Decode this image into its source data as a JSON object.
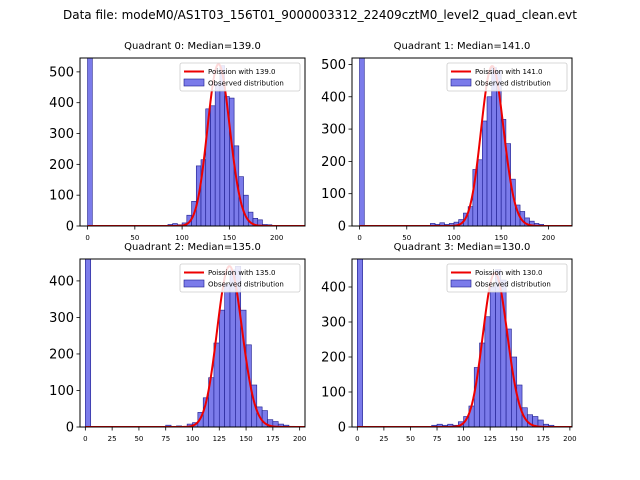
{
  "page": {
    "suptitle": "Data file: modeM0/AS1T03_156T01_9000003312_22409cztM0_level2_quad_clean.evt"
  },
  "colors": {
    "bar_fill": "#7b7bea",
    "bar_edge": "#1a1a8c",
    "fit_line": "#ee0000",
    "axis": "#000000"
  },
  "chart_data": [
    {
      "type": "bar",
      "title": "Quadrant 0: Median=139.0",
      "xlim": [
        -8,
        230
      ],
      "ylim": [
        0,
        545
      ],
      "xticks": [
        0,
        50,
        100,
        150,
        200
      ],
      "yticks": [
        0,
        100,
        200,
        300,
        400,
        500
      ],
      "bin_width": 5,
      "bars": [
        [
          0,
          545
        ],
        [
          85,
          5
        ],
        [
          90,
          8
        ],
        [
          95,
          4
        ],
        [
          100,
          10
        ],
        [
          105,
          35
        ],
        [
          110,
          80
        ],
        [
          115,
          195
        ],
        [
          120,
          215
        ],
        [
          125,
          380
        ],
        [
          130,
          390
        ],
        [
          135,
          460
        ],
        [
          140,
          520
        ],
        [
          145,
          420
        ],
        [
          150,
          415
        ],
        [
          155,
          260
        ],
        [
          160,
          160
        ],
        [
          165,
          100
        ],
        [
          170,
          45
        ],
        [
          175,
          25
        ],
        [
          180,
          20
        ],
        [
          185,
          5
        ],
        [
          190,
          4
        ],
        [
          195,
          2
        ]
      ],
      "fit": {
        "lambda": 139.0,
        "scale": 525
      },
      "legend": [
        "Poission with 139.0",
        "Observed distribution"
      ]
    },
    {
      "type": "bar",
      "title": "Quadrant 1: Median=141.0",
      "xlim": [
        -8,
        225
      ],
      "ylim": [
        0,
        520
      ],
      "xticks": [
        0,
        50,
        100,
        150,
        200
      ],
      "yticks": [
        0,
        100,
        200,
        300,
        400,
        500
      ],
      "bin_width": 5,
      "bars": [
        [
          0,
          520
        ],
        [
          75,
          8
        ],
        [
          80,
          5
        ],
        [
          85,
          10
        ],
        [
          90,
          5
        ],
        [
          95,
          8
        ],
        [
          100,
          12
        ],
        [
          105,
          20
        ],
        [
          110,
          40
        ],
        [
          115,
          60
        ],
        [
          120,
          175
        ],
        [
          125,
          205
        ],
        [
          130,
          325
        ],
        [
          135,
          400
        ],
        [
          140,
          490
        ],
        [
          145,
          480
        ],
        [
          150,
          330
        ],
        [
          155,
          255
        ],
        [
          160,
          145
        ],
        [
          165,
          65
        ],
        [
          170,
          45
        ],
        [
          175,
          25
        ],
        [
          180,
          15
        ],
        [
          185,
          8
        ],
        [
          190,
          5
        ]
      ],
      "fit": {
        "lambda": 141.0,
        "scale": 495
      },
      "legend": [
        "Poission with 141.0",
        "Observed distribution"
      ]
    },
    {
      "type": "bar",
      "title": "Quadrant 2: Median=135.0",
      "xlim": [
        -5,
        205
      ],
      "ylim": [
        0,
        460
      ],
      "xticks": [
        0,
        25,
        50,
        75,
        100,
        125,
        150,
        175,
        200
      ],
      "yticks": [
        0,
        100,
        200,
        300,
        400
      ],
      "bin_width": 5,
      "bars": [
        [
          0,
          460
        ],
        [
          75,
          5
        ],
        [
          85,
          3
        ],
        [
          95,
          8
        ],
        [
          100,
          12
        ],
        [
          105,
          40
        ],
        [
          110,
          80
        ],
        [
          115,
          135
        ],
        [
          120,
          230
        ],
        [
          125,
          320
        ],
        [
          130,
          390
        ],
        [
          135,
          430
        ],
        [
          140,
          440
        ],
        [
          145,
          320
        ],
        [
          150,
          225
        ],
        [
          155,
          115
        ],
        [
          160,
          55
        ],
        [
          165,
          45
        ],
        [
          170,
          20
        ],
        [
          175,
          15
        ],
        [
          180,
          8
        ],
        [
          185,
          5
        ],
        [
          190,
          2
        ]
      ],
      "fit": {
        "lambda": 135.0,
        "scale": 440
      },
      "legend": [
        "Poission with 135.0",
        "Observed distribution"
      ]
    },
    {
      "type": "bar",
      "title": "Quadrant 3: Median=130.0",
      "xlim": [
        -5,
        202
      ],
      "ylim": [
        0,
        480
      ],
      "xticks": [
        0,
        25,
        50,
        75,
        100,
        125,
        150,
        175,
        200
      ],
      "yticks": [
        0,
        100,
        200,
        300,
        400
      ],
      "bin_width": 5,
      "bars": [
        [
          0,
          480
        ],
        [
          70,
          5
        ],
        [
          75,
          8
        ],
        [
          80,
          5
        ],
        [
          85,
          8
        ],
        [
          90,
          5
        ],
        [
          95,
          15
        ],
        [
          100,
          30
        ],
        [
          105,
          60
        ],
        [
          110,
          170
        ],
        [
          115,
          240
        ],
        [
          120,
          315
        ],
        [
          125,
          400
        ],
        [
          130,
          450
        ],
        [
          135,
          420
        ],
        [
          140,
          280
        ],
        [
          145,
          200
        ],
        [
          150,
          120
        ],
        [
          155,
          55
        ],
        [
          160,
          35
        ],
        [
          165,
          30
        ],
        [
          170,
          20
        ],
        [
          175,
          8
        ],
        [
          180,
          5
        ]
      ],
      "fit": {
        "lambda": 130.0,
        "scale": 440
      },
      "legend": [
        "Poission with 130.0",
        "Observed distribution"
      ]
    }
  ]
}
